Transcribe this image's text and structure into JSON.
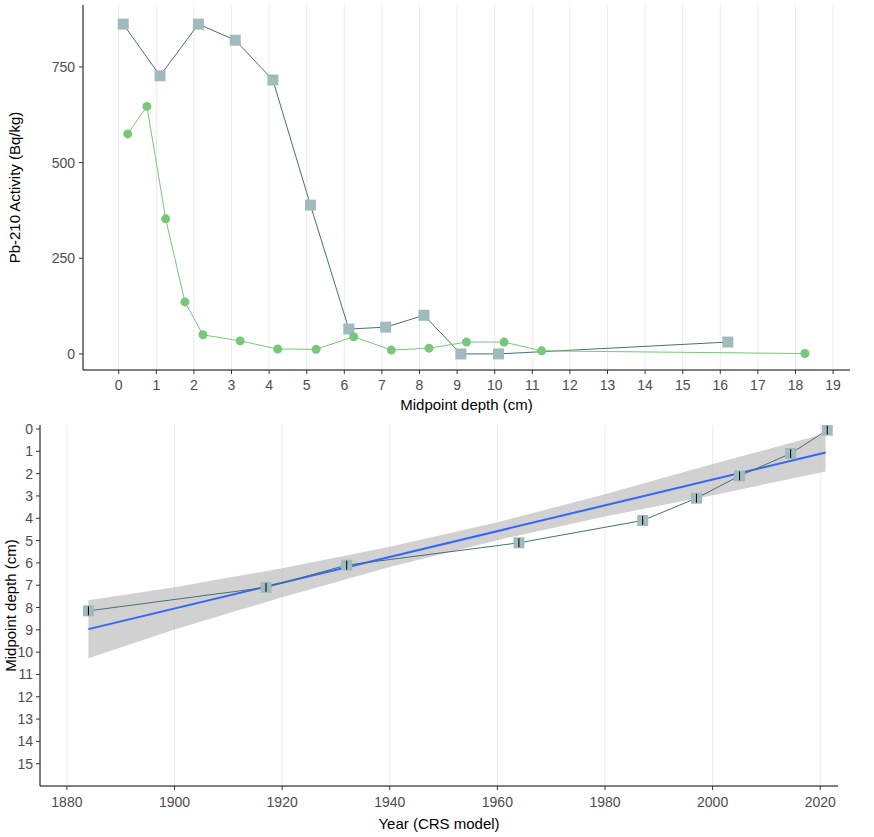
{
  "chart_data": [
    {
      "type": "line",
      "x_label": "Midpoint depth (cm)",
      "y_label": "Pb-210 Activity (Bq/kg)",
      "xlim": [
        -0.95,
        19.45
      ],
      "ylim": [
        -42,
        912
      ],
      "xticks": [
        0,
        1,
        2,
        3,
        4,
        5,
        6,
        7,
        8,
        9,
        10,
        11,
        12,
        13,
        14,
        15,
        16,
        17,
        18,
        19
      ],
      "yticks": [
        0,
        250,
        500,
        750
      ],
      "grid": "x",
      "series": [
        {
          "color": "#4b6f72",
          "marker": "square",
          "type": "line",
          "x": [
            0.12,
            1.1,
            2.12,
            3.1,
            4.1,
            5.1,
            6.12,
            7.1,
            8.12,
            9.1,
            10.1,
            16.2
          ],
          "values": [
            862,
            727,
            862,
            820,
            716,
            389,
            65,
            70,
            101,
            0,
            0,
            31
          ]
        },
        {
          "color": "#78c77a",
          "marker": "circle",
          "type": "line",
          "x": [
            0.24,
            0.75,
            1.25,
            1.76,
            2.24,
            3.23,
            4.23,
            5.25,
            6.25,
            7.25,
            8.25,
            9.25,
            10.25,
            11.25,
            18.25
          ],
          "values": [
            575,
            647,
            353,
            136,
            50,
            34,
            13,
            12,
            45,
            10,
            15,
            31,
            31,
            8,
            1
          ]
        }
      ]
    },
    {
      "type": "line",
      "x_label": "Year (CRS model)",
      "y_label": "Midpoint depth (cm)",
      "xlim": [
        1875,
        2023.3
      ],
      "ylim": [
        16,
        -0.18
      ],
      "xticks": [
        1880,
        1900,
        1920,
        1940,
        1960,
        1980,
        2000,
        2020
      ],
      "yticks": [
        0,
        1,
        2,
        3,
        4,
        5,
        6,
        7,
        8,
        9,
        10,
        11,
        12,
        13,
        14,
        15
      ],
      "grid": "x",
      "series": [
        {
          "type": "area",
          "color": "#bdbdbd",
          "x": [
            1884,
            1900,
            1920,
            1940,
            1960,
            1980,
            2000,
            2021
          ],
          "lower": [
            10.27,
            8.99,
            7.54,
            6.18,
            4.98,
            3.92,
            2.97,
            1.9
          ],
          "upper": [
            7.67,
            7.09,
            6.24,
            5.28,
            4.18,
            2.92,
            1.57,
            0.2
          ]
        },
        {
          "type": "line",
          "color": "#3366ff",
          "marker": "none",
          "x": [
            1884,
            2021
          ],
          "values": [
            8.97,
            1.05
          ]
        },
        {
          "type": "line",
          "color": "#4b6f72",
          "marker": "square",
          "x": [
            1884,
            1917,
            1932,
            1964,
            1987,
            1997,
            2005,
            2014.5,
            2021.3
          ],
          "values": [
            8.15,
            7.1,
            6.1,
            5.1,
            4.1,
            3.1,
            2.1,
            1.1,
            0.05
          ],
          "errors": [
            0.2,
            0.2,
            0.2,
            0.2,
            0.2,
            0.2,
            0.2,
            0.2,
            0.2
          ]
        }
      ]
    }
  ]
}
